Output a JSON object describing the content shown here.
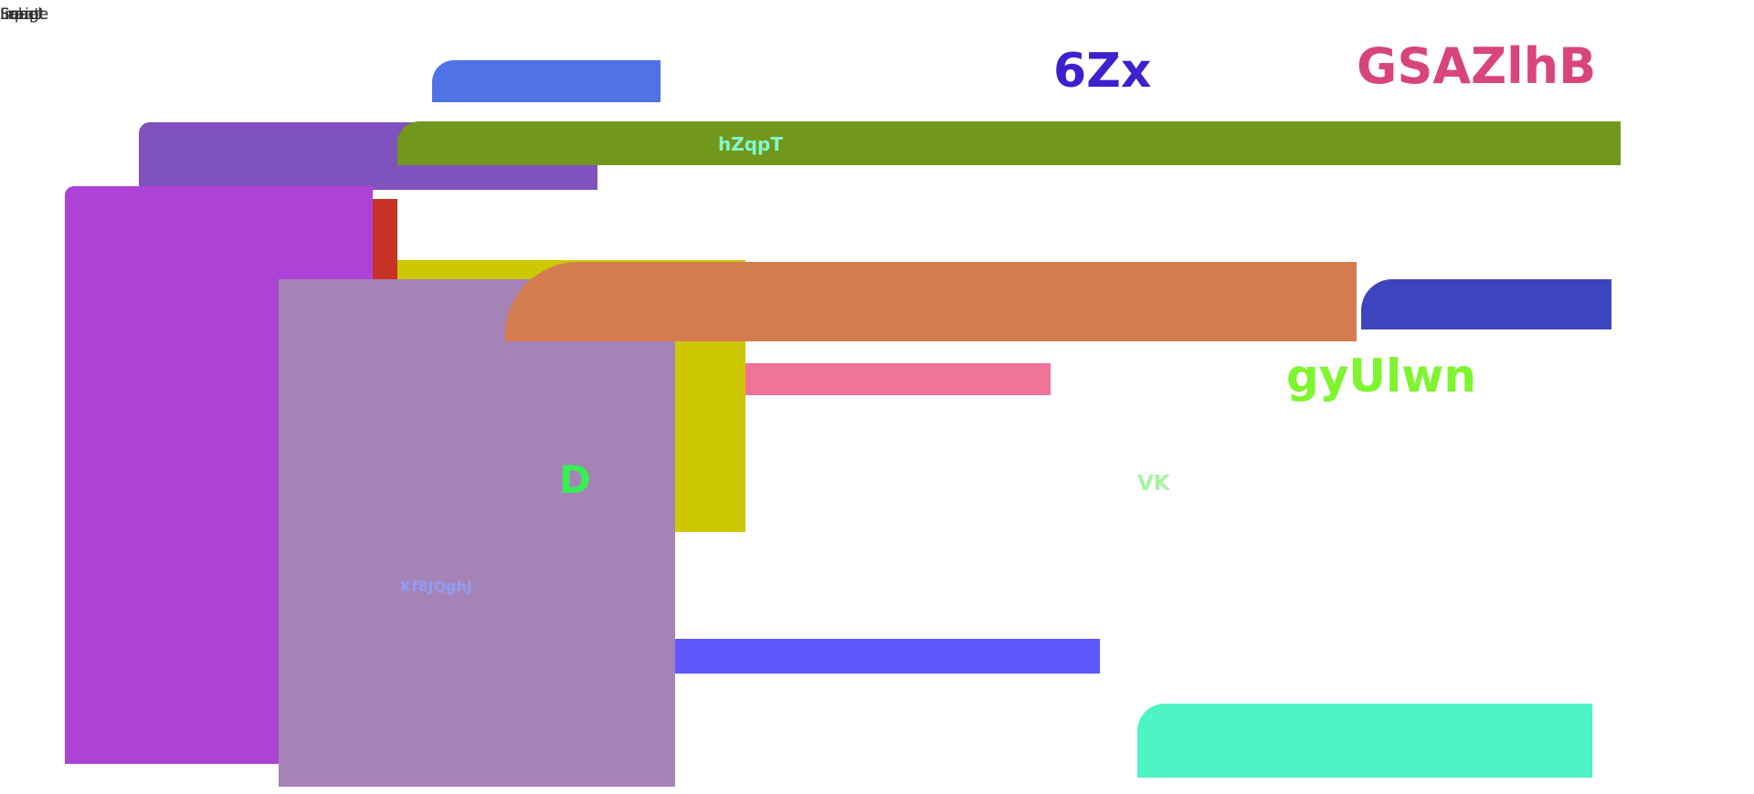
{
  "overlapped_labels": [
    "Script",
    "Image",
    "Frame",
    "Input",
    "Label"
  ],
  "texts": {
    "t1": "6Zx",
    "t2": "GSAZlhB",
    "t3": "hZqpT",
    "t4": "gyUlwn",
    "t5": "D",
    "t6": "VK",
    "t7": "Kf8JQghj"
  },
  "colors": {
    "blue_top": "#4f73e6",
    "purple_bar": "#7f52be",
    "green_bar": "#71981d",
    "magenta_panel": "#ad43d6",
    "red_strip": "#c83326",
    "yellow_block": "#cec704",
    "mauve_panel": "#a683b6",
    "orange_bar": "#d57c4f",
    "navy_pill": "#3e43bf",
    "pink_bar": "#f07398",
    "blue_bar": "#5f58fc",
    "aqua_panel": "#4ef4c3",
    "text_6zx": "#3d20ce",
    "text_gsazlhb": "#d8457d",
    "text_hzqpt": "#83f7cc",
    "text_gyulwn": "#7ef52e",
    "text_d": "#36ef52",
    "text_vk": "#a6f3a2",
    "text_kf8": "#8f9cf8"
  }
}
